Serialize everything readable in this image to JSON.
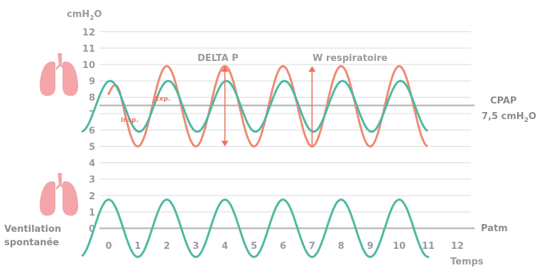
{
  "chart_data": {
    "type": "line",
    "ylabel": "cmH",
    "ylabel_sub": "2",
    "ylabel_tail": "O",
    "xlabel": "Temps",
    "x_ticks": [
      "0",
      "1",
      "2",
      "3",
      "4",
      "5",
      "6",
      "7",
      "8",
      "9",
      "10",
      "11",
      "12"
    ],
    "y_ticks": [
      "0",
      "1",
      "2",
      "3",
      "4",
      "5",
      "6",
      "7",
      "8",
      "9",
      "10",
      "11",
      "12"
    ],
    "xlim": [
      0,
      12
    ],
    "ylim": [
      0,
      12
    ],
    "grid": true,
    "reference_lines": [
      {
        "name": "CPAP",
        "value": 7.5,
        "label": "CPAP",
        "sublabel_pre": "7,5 cmH",
        "sublabel_sub": "2",
        "sublabel_tail": "O"
      },
      {
        "name": "Patm",
        "value": 0,
        "label": "Patm"
      }
    ],
    "series": [
      {
        "color": "#ef8a73",
        "x_start": 0,
        "x_end": 10.95,
        "period": 2,
        "center": 7.45,
        "amplitude": 2.45,
        "phase_peak_x": 2,
        "start_value": 8.2
      },
      {
        "color": "#4fb8a2",
        "x_start": -0.9,
        "x_end": 10.95,
        "period": 2,
        "center": 7.45,
        "amplitude": 1.55,
        "phase_peak_x": 2.05
      },
      {
        "color": "#4fb8a2",
        "x_start": -0.9,
        "x_end": 11,
        "period": 2,
        "center": 0,
        "amplitude": 1.75,
        "phase_peak_x": 2
      }
    ],
    "annotations": [
      {
        "text": "DELTA P",
        "arrow_x": 4,
        "arrow_from": 5,
        "arrow_to": 9.9,
        "double_headed": true
      },
      {
        "text": "W respiratoire",
        "arrow_x": 7,
        "arrow_from": 5,
        "arrow_to": 9.9,
        "double_headed": false
      },
      {
        "text": "Insp.",
        "x": 0.7,
        "y": 6.6
      },
      {
        "text": "Exp.",
        "x": 1.6,
        "y": 7.9
      }
    ],
    "left_labels": [
      "Ventilation",
      "spontanée"
    ],
    "icons": [
      "lungs-icon",
      "lungs-icon"
    ],
    "colors": {
      "accent": "#e8745f",
      "teal": "#4fb8a2",
      "grid": "#d9d9d9",
      "refline": "#bdbdbd",
      "text": "#9b9b9b",
      "lungs": "#f3a5a8"
    }
  }
}
